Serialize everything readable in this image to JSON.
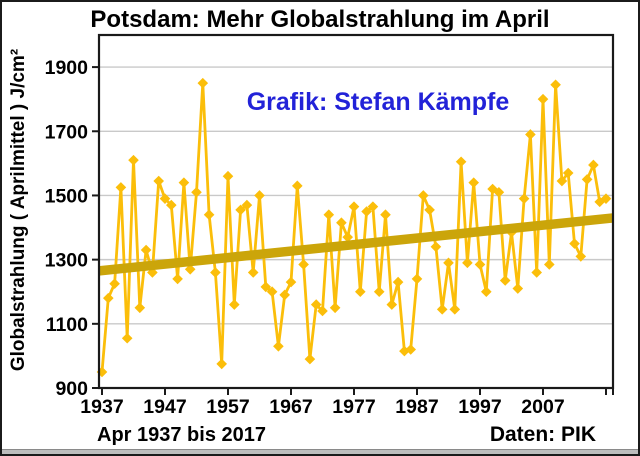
{
  "chart": {
    "title": "Potsdam: Mehr Globalstrahlung im April",
    "annotation": "Grafik: Stefan Kämpfe",
    "ylabel": "Globalstrahlung ( Aprilmittel ) J/cm²",
    "footer_left": "Apr 1937 bis 2017",
    "footer_right": "Daten: PIK"
  },
  "chart_data": {
    "type": "line",
    "title": "Potsdam: Mehr Globalstrahlung im April",
    "ylabel": "Globalstrahlung ( Aprilmittel ) J/cm²",
    "x_start": 1937,
    "x_end": 2017,
    "x_tick_labels": [
      "1937",
      "1947",
      "1957",
      "1967",
      "1977",
      "1987",
      "1997",
      "2007"
    ],
    "x_tick_years": [
      1937,
      1947,
      1957,
      1967,
      1977,
      1987,
      1997,
      2007,
      2017
    ],
    "y_ticks": [
      900,
      1100,
      1300,
      1500,
      1700,
      1900
    ],
    "ylim": [
      900,
      2000
    ],
    "grid": "horizontal",
    "legend_position": "none",
    "marker": "diamond",
    "values": [
      950,
      1180,
      1225,
      1525,
      1055,
      1610,
      1150,
      1330,
      1260,
      1545,
      1490,
      1470,
      1240,
      1540,
      1270,
      1510,
      1850,
      1440,
      1260,
      975,
      1560,
      1160,
      1455,
      1470,
      1260,
      1500,
      1215,
      1200,
      1030,
      1190,
      1230,
      1530,
      1285,
      990,
      1160,
      1140,
      1440,
      1150,
      1415,
      1370,
      1465,
      1200,
      1450,
      1465,
      1200,
      1440,
      1160,
      1230,
      1015,
      1020,
      1240,
      1500,
      1455,
      1340,
      1145,
      1290,
      1145,
      1605,
      1290,
      1540,
      1285,
      1200,
      1520,
      1510,
      1235,
      1385,
      1210,
      1490,
      1690,
      1260,
      1800,
      1285,
      1845,
      1545,
      1570,
      1350,
      1310,
      1550,
      1595,
      1480,
      1490
    ],
    "trend": {
      "type": "linear",
      "start_value": 1265,
      "end_value": 1430
    },
    "series_color": "#FBBE0A",
    "trend_color": "#CBA50A",
    "grid_color": "#C9C9C9",
    "axis_color": "#1a1a1a",
    "annotation_color": "#2222D8",
    "tick_label_color": "#000000"
  }
}
